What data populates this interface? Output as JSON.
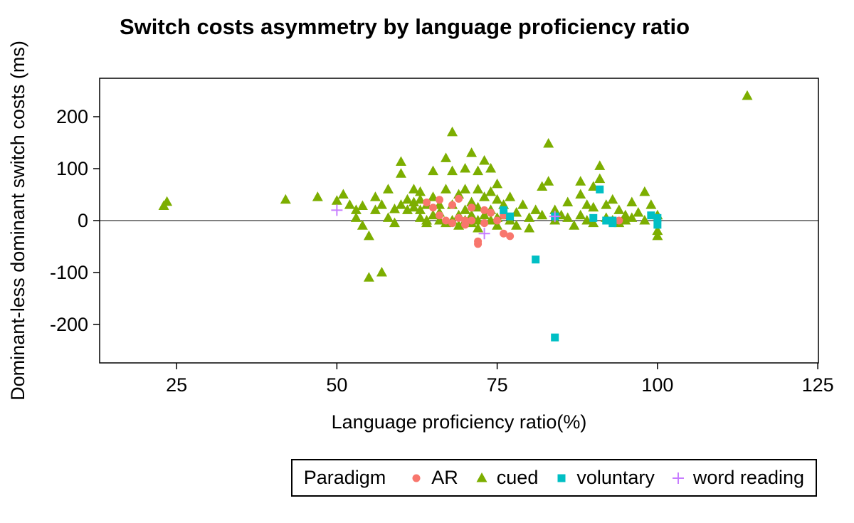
{
  "figure": {
    "title": "Switch costs asymmetry by language proficiency ratio",
    "xlabel": "Language proficiency ratio(%)",
    "ylabel": "Dominant-less dominant switch costs (ms)"
  },
  "chart_data": {
    "type": "scatter",
    "title": "Switch costs asymmetry by language proficiency ratio",
    "xlabel": "Language proficiency ratio(%)",
    "ylabel": "Dominant-less dominant switch costs (ms)",
    "xlim": [
      13,
      125.1
    ],
    "ylim": [
      -274,
      274
    ],
    "x_ticks": [
      25,
      50,
      75,
      100,
      125
    ],
    "y_ticks": [
      -200,
      -100,
      0,
      100,
      200
    ],
    "grid": false,
    "hline": 0,
    "panel_border_color": "#000000",
    "legend": {
      "title": "Paradigm",
      "position": "bottom"
    },
    "series": [
      {
        "name": "AR",
        "shape": "circle",
        "color": "#F8766D",
        "z": 1,
        "points": [
          [
            64,
            35
          ],
          [
            65,
            25
          ],
          [
            66,
            40
          ],
          [
            66,
            10
          ],
          [
            67,
            0
          ],
          [
            68,
            30
          ],
          [
            68,
            -5
          ],
          [
            69,
            42
          ],
          [
            69,
            5
          ],
          [
            70,
            0
          ],
          [
            70,
            -8
          ],
          [
            71,
            25
          ],
          [
            71,
            0
          ],
          [
            72,
            -40
          ],
          [
            72,
            -45
          ],
          [
            73,
            20
          ],
          [
            73,
            -5
          ],
          [
            74,
            15
          ],
          [
            75,
            0
          ],
          [
            76,
            10
          ],
          [
            76,
            -25
          ],
          [
            77,
            -30
          ],
          [
            94,
            0
          ]
        ]
      },
      {
        "name": "cued",
        "shape": "triangle",
        "color": "#7CAE00",
        "z": 0,
        "points": [
          [
            23,
            28
          ],
          [
            23.5,
            36
          ],
          [
            42,
            40
          ],
          [
            47,
            45
          ],
          [
            50,
            38
          ],
          [
            51,
            50
          ],
          [
            52,
            30
          ],
          [
            53,
            20
          ],
          [
            53,
            5
          ],
          [
            54,
            28
          ],
          [
            54,
            -10
          ],
          [
            55,
            -30
          ],
          [
            55,
            -110
          ],
          [
            56,
            45
          ],
          [
            56,
            20
          ],
          [
            57,
            30
          ],
          [
            57,
            -100
          ],
          [
            58,
            60
          ],
          [
            58,
            5
          ],
          [
            59,
            22
          ],
          [
            59,
            -5
          ],
          [
            60,
            113
          ],
          [
            60,
            90
          ],
          [
            60,
            30
          ],
          [
            61,
            40
          ],
          [
            61,
            20
          ],
          [
            62,
            60
          ],
          [
            62,
            35
          ],
          [
            62,
            25
          ],
          [
            63,
            55
          ],
          [
            63,
            40
          ],
          [
            63,
            20
          ],
          [
            63,
            5
          ],
          [
            64,
            30
          ],
          [
            64,
            0
          ],
          [
            64,
            -5
          ],
          [
            65,
            95
          ],
          [
            65,
            45
          ],
          [
            65,
            10
          ],
          [
            66,
            30
          ],
          [
            66,
            15
          ],
          [
            66,
            0
          ],
          [
            67,
            120
          ],
          [
            67,
            60
          ],
          [
            67,
            -5
          ],
          [
            68,
            170
          ],
          [
            68,
            95
          ],
          [
            68,
            30
          ],
          [
            68,
            0
          ],
          [
            69,
            50
          ],
          [
            69,
            10
          ],
          [
            69,
            -10
          ],
          [
            70,
            100
          ],
          [
            70,
            60
          ],
          [
            70,
            20
          ],
          [
            70,
            0
          ],
          [
            71,
            130
          ],
          [
            71,
            35
          ],
          [
            71,
            10
          ],
          [
            71,
            -5
          ],
          [
            72,
            95
          ],
          [
            72,
            60
          ],
          [
            72,
            25
          ],
          [
            72,
            0
          ],
          [
            72,
            -15
          ],
          [
            73,
            115
          ],
          [
            73,
            45
          ],
          [
            73,
            10
          ],
          [
            74,
            100
          ],
          [
            74,
            55
          ],
          [
            74,
            20
          ],
          [
            74,
            0
          ],
          [
            75,
            70
          ],
          [
            75,
            40
          ],
          [
            75,
            5
          ],
          [
            75,
            -10
          ],
          [
            76,
            30
          ],
          [
            76,
            10
          ],
          [
            77,
            45
          ],
          [
            77,
            0
          ],
          [
            78,
            15
          ],
          [
            78,
            -10
          ],
          [
            79,
            30
          ],
          [
            80,
            5
          ],
          [
            80,
            -15
          ],
          [
            81,
            20
          ],
          [
            82,
            65
          ],
          [
            82,
            10
          ],
          [
            83,
            148
          ],
          [
            83,
            75
          ],
          [
            84,
            20
          ],
          [
            84,
            0
          ],
          [
            85,
            10
          ],
          [
            86,
            35
          ],
          [
            86,
            5
          ],
          [
            87,
            -10
          ],
          [
            88,
            75
          ],
          [
            88,
            50
          ],
          [
            88,
            10
          ],
          [
            89,
            30
          ],
          [
            89,
            0
          ],
          [
            90,
            65
          ],
          [
            90,
            25
          ],
          [
            90,
            -5
          ],
          [
            91,
            105
          ],
          [
            91,
            80
          ],
          [
            92,
            30
          ],
          [
            92,
            5
          ],
          [
            93,
            40
          ],
          [
            93,
            0
          ],
          [
            94,
            20
          ],
          [
            94,
            -5
          ],
          [
            95,
            10
          ],
          [
            95,
            0
          ],
          [
            96,
            35
          ],
          [
            96,
            5
          ],
          [
            97,
            15
          ],
          [
            98,
            55
          ],
          [
            98,
            0
          ],
          [
            99,
            30
          ],
          [
            100,
            10
          ],
          [
            100,
            -20
          ],
          [
            100,
            -30
          ],
          [
            114,
            240
          ]
        ]
      },
      {
        "name": "voluntary",
        "shape": "square",
        "color": "#00BFC4",
        "z": 2,
        "points": [
          [
            76,
            20
          ],
          [
            77,
            8
          ],
          [
            81,
            -75
          ],
          [
            84,
            8
          ],
          [
            84,
            -225
          ],
          [
            90,
            5
          ],
          [
            91,
            60
          ],
          [
            92,
            0
          ],
          [
            93,
            0
          ],
          [
            93,
            -5
          ],
          [
            99,
            10
          ],
          [
            100,
            5
          ],
          [
            100,
            -8
          ]
        ]
      },
      {
        "name": "word reading",
        "shape": "plus",
        "color": "#C77CFF",
        "z": 3,
        "points": [
          [
            50,
            20
          ],
          [
            73,
            -25
          ],
          [
            84,
            8
          ]
        ]
      }
    ]
  }
}
